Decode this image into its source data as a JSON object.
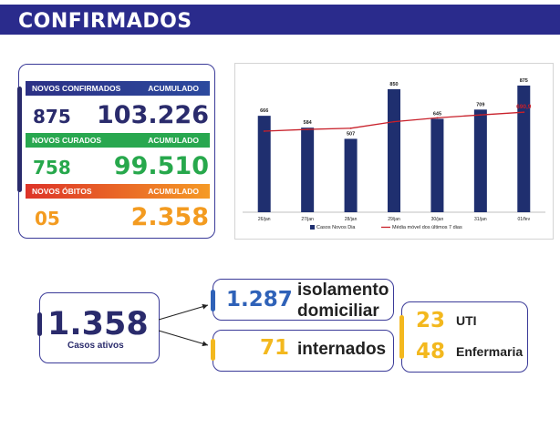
{
  "header": {
    "title": "CONFIRMADOS"
  },
  "stats": {
    "confirmados": {
      "label": "NOVOS CONFIRMADOS",
      "acc_label": "ACUMULADO",
      "novos": "875",
      "acumulado": "103.226",
      "color": "#2a2b6c"
    },
    "curados": {
      "label": "NOVOS CURADOS",
      "acc_label": "ACUMULADO",
      "novos": "758",
      "acumulado": "99.510",
      "color": "#27a84c"
    },
    "obitos": {
      "label": "NOVOS ÓBITOS",
      "acc_label": "ACUMULADO",
      "novos": "05",
      "acumulado": "2.358",
      "color": "#f39b20"
    }
  },
  "chart_data": {
    "type": "bar",
    "categories": [
      "26/jan",
      "27/jan",
      "28/jan",
      "29/jan",
      "30/jan",
      "31/jan",
      "01/fev"
    ],
    "series": [
      {
        "name": "Casos Novos Dia",
        "type": "bar",
        "values": [
          666,
          584,
          507,
          850,
          645,
          709,
          875
        ],
        "color": "#1f2f6f"
      },
      {
        "name": "Média móvel dos últimos 7 dias",
        "type": "line",
        "values": [
          560,
          572,
          580,
          625,
          652,
          672,
          690.9
        ],
        "color": "#c8202a"
      }
    ],
    "bar_labels": [
      "666",
      "584",
      "507",
      "850",
      "645",
      "709",
      "875"
    ],
    "line_end_label": "690,9",
    "ylim": [
      0,
      950
    ],
    "grid": false,
    "legend": "bottom"
  },
  "ativos": {
    "value": "1.358",
    "label": "Casos ativos"
  },
  "isolamento": {
    "value": "1.287",
    "label_line1": "isolamento",
    "label_line2": "domiciliar"
  },
  "internados": {
    "value": "71",
    "label": "internados"
  },
  "uti": {
    "value": "23",
    "label": "UTI"
  },
  "enfermaria": {
    "value": "48",
    "label": "Enfermaria"
  }
}
